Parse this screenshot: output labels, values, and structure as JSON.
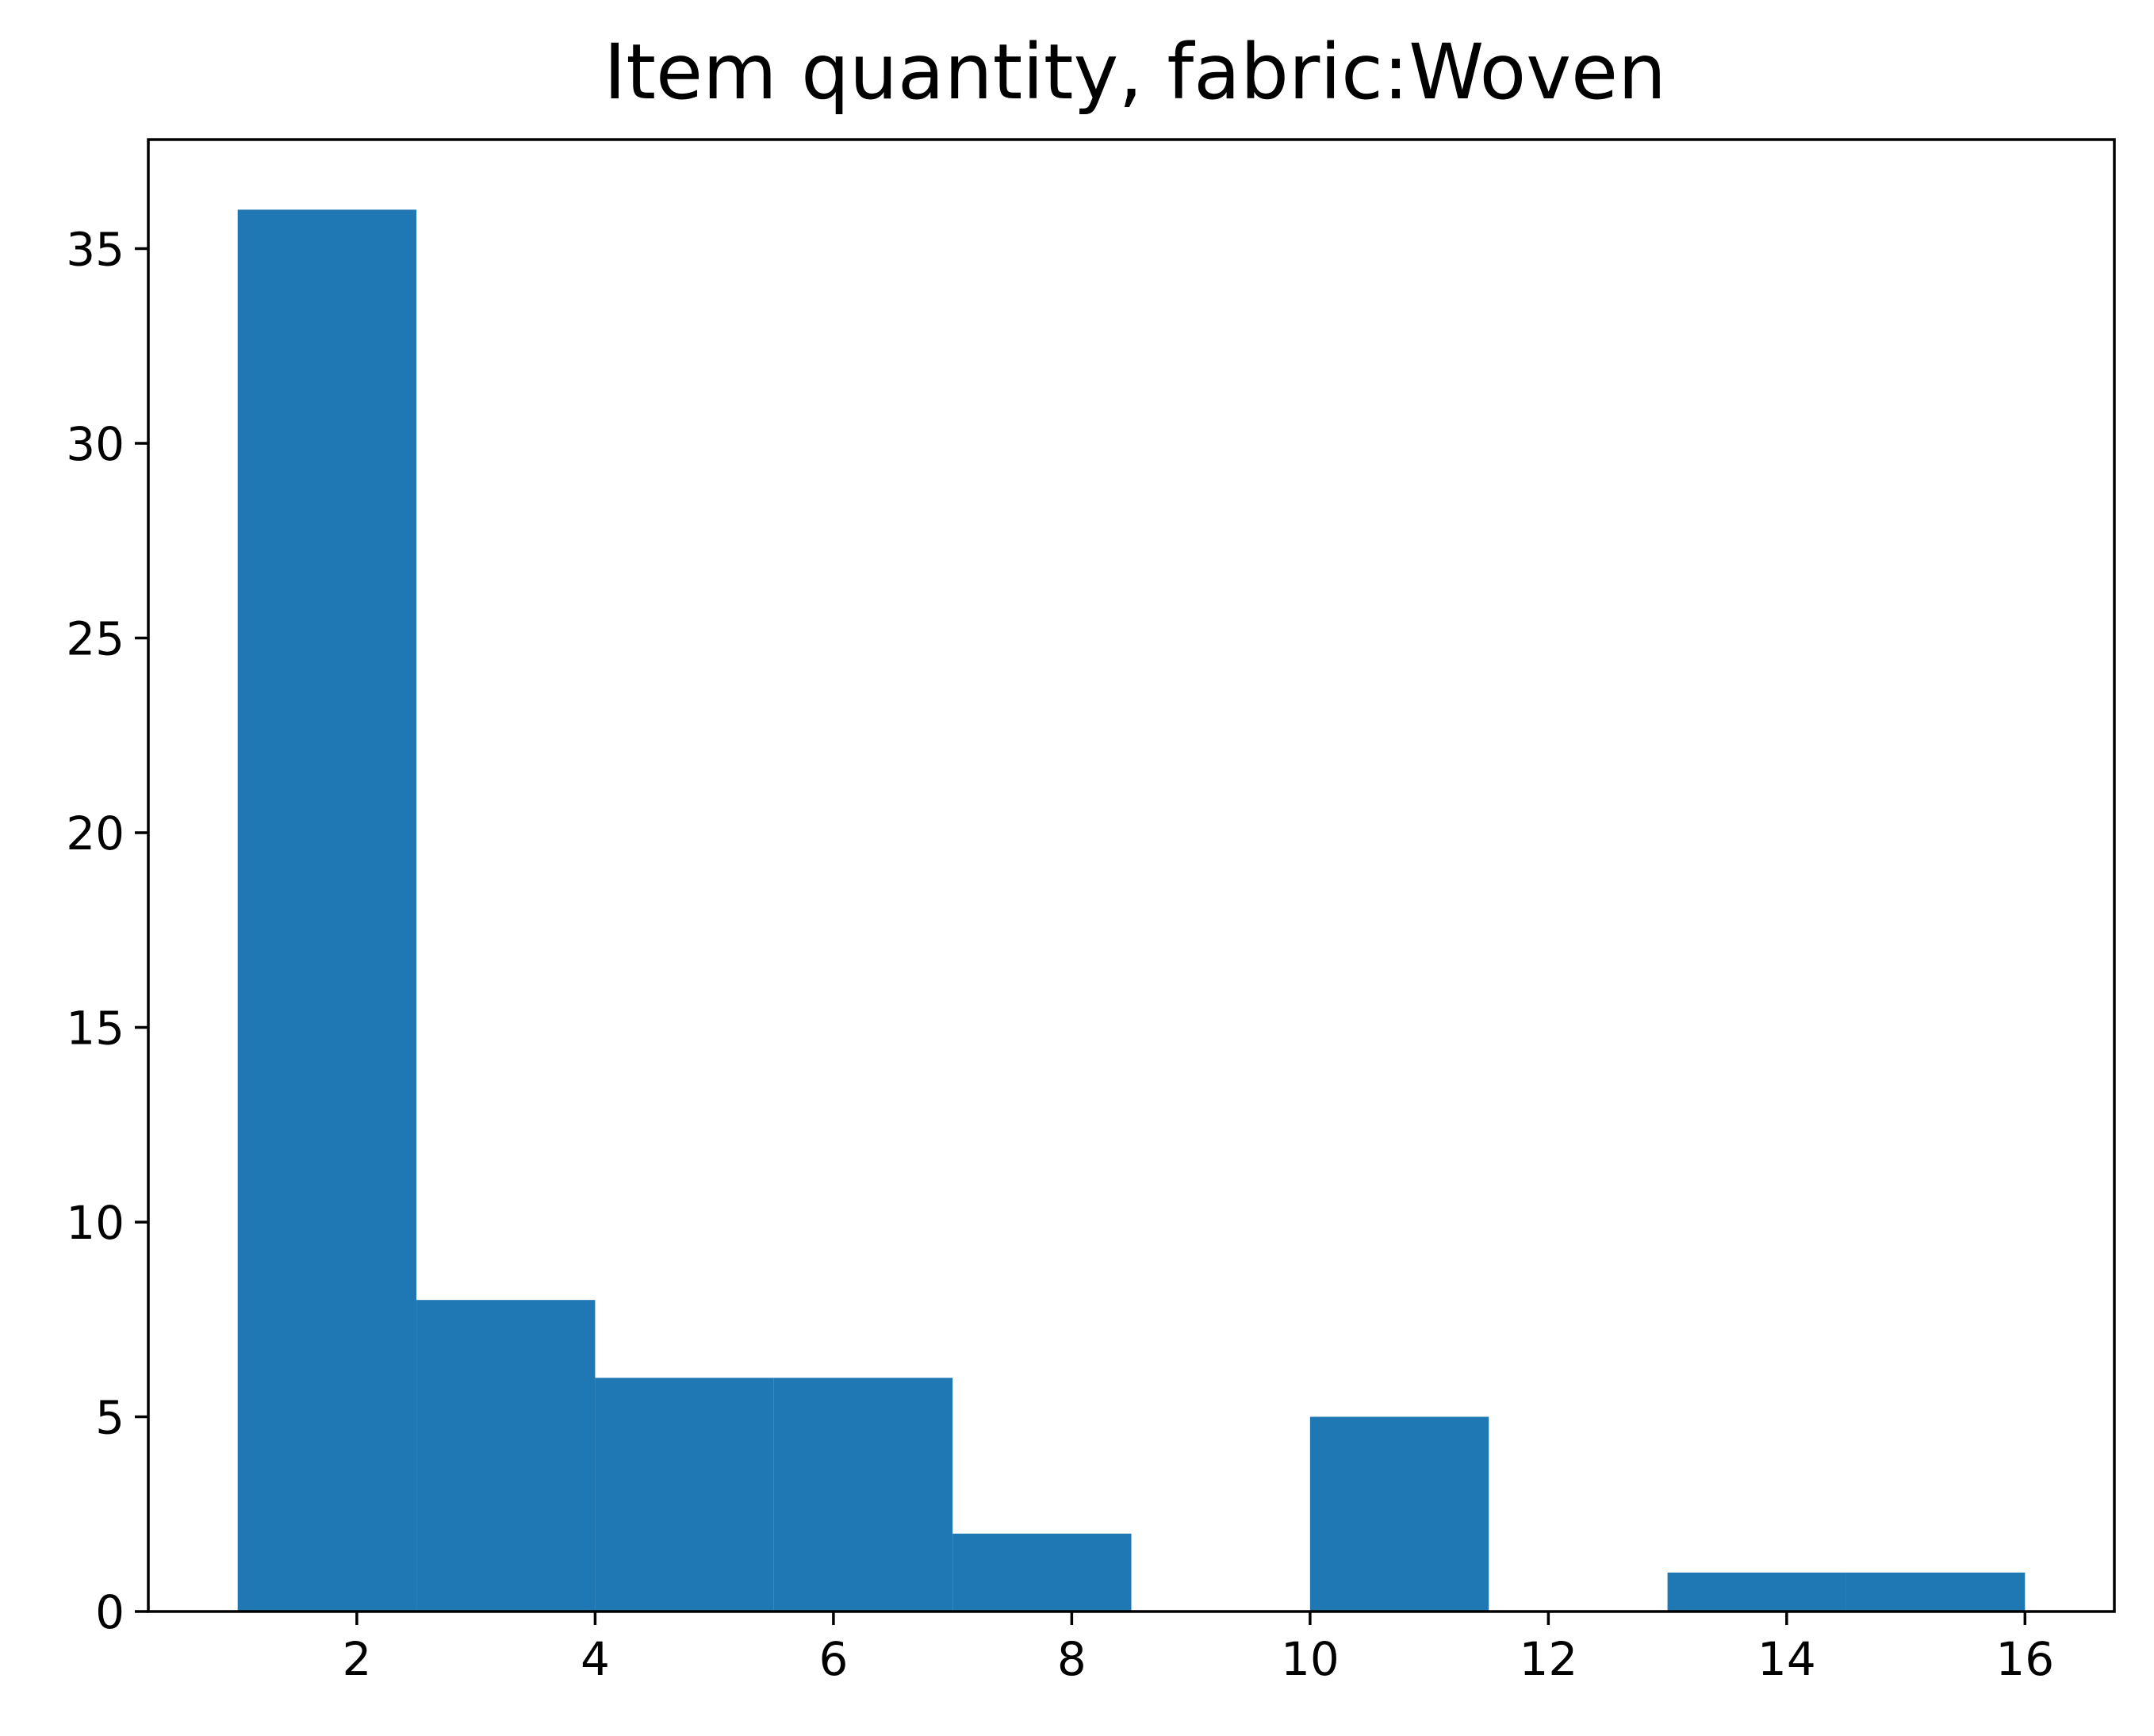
{
  "chart_data": {
    "type": "bar",
    "title": "Item quantity, fabric:Woven",
    "xlabel": "",
    "ylabel": "",
    "bar_color": "#1f77b4",
    "grid": false,
    "legend": "none",
    "bins": [
      {
        "x0": 1.0,
        "x1": 2.5,
        "count": 36
      },
      {
        "x0": 2.5,
        "x1": 4.0,
        "count": 8
      },
      {
        "x0": 4.0,
        "x1": 5.5,
        "count": 6
      },
      {
        "x0": 5.5,
        "x1": 7.0,
        "count": 6
      },
      {
        "x0": 7.0,
        "x1": 8.5,
        "count": 2
      },
      {
        "x0": 8.5,
        "x1": 10.0,
        "count": 0
      },
      {
        "x0": 10.0,
        "x1": 11.5,
        "count": 5
      },
      {
        "x0": 11.5,
        "x1": 13.0,
        "count": 0
      },
      {
        "x0": 13.0,
        "x1": 14.5,
        "count": 1
      },
      {
        "x0": 14.5,
        "x1": 16.0,
        "count": 1
      }
    ],
    "xlim": [
      0.25,
      16.75
    ],
    "ylim": [
      0,
      37.8
    ],
    "xticks": [
      2,
      4,
      6,
      8,
      10,
      12,
      14,
      16
    ],
    "yticks": [
      0,
      5,
      10,
      15,
      20,
      25,
      30,
      35
    ]
  }
}
